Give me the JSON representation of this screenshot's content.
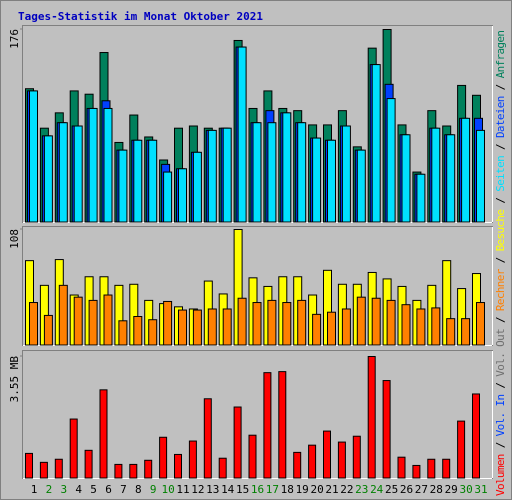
{
  "title": "Tages-Statistik im Monat Oktober 2021",
  "chart_data": [
    {
      "type": "bar",
      "ylim": [
        0,
        176
      ],
      "yticks": [
        176
      ],
      "series": [
        {
          "name": "Anfragen",
          "color": "#00805c",
          "values": [
            122,
            86,
            100,
            120,
            117,
            155,
            73,
            98,
            78,
            57,
            86,
            88,
            86,
            86,
            166,
            104,
            120,
            104,
            102,
            89,
            89,
            102,
            69,
            159,
            176,
            89,
            46,
            102,
            88,
            125,
            116
          ]
        },
        {
          "name": "Dateien",
          "color": "#0040ff",
          "values": [
            120,
            79,
            91,
            88,
            104,
            111,
            66,
            75,
            75,
            53,
            49,
            64,
            84,
            86,
            160,
            91,
            102,
            100,
            91,
            77,
            75,
            88,
            66,
            144,
            126,
            80,
            44,
            86,
            80,
            95,
            95
          ]
        },
        {
          "name": "Seiten",
          "color": "#00e0ff",
          "values": [
            120,
            79,
            91,
            88,
            104,
            104,
            66,
            75,
            75,
            46,
            49,
            64,
            84,
            86,
            160,
            91,
            91,
            100,
            91,
            77,
            75,
            88,
            66,
            144,
            113,
            80,
            44,
            86,
            80,
            95,
            84
          ]
        }
      ]
    },
    {
      "type": "bar",
      "ylim": [
        0,
        108
      ],
      "yticks": [
        108
      ],
      "series": [
        {
          "name": "Besuche",
          "color": "#ffff00",
          "values": [
            79,
            56,
            80,
            47,
            64,
            64,
            56,
            57,
            42,
            39,
            36,
            34,
            60,
            48,
            108,
            63,
            55,
            64,
            64,
            47,
            70,
            57,
            57,
            68,
            62,
            55,
            42,
            56,
            79,
            53,
            67
          ]
        },
        {
          "name": "Rechner",
          "color": "#ff8000",
          "values": [
            40,
            28,
            56,
            45,
            42,
            47,
            23,
            27,
            24,
            41,
            33,
            33,
            34,
            34,
            44,
            40,
            42,
            40,
            42,
            29,
            31,
            34,
            45,
            44,
            42,
            38,
            34,
            35,
            25,
            25,
            40
          ]
        }
      ]
    },
    {
      "type": "bar",
      "ylim": [
        0,
        3.55
      ],
      "yticks": [
        {
          "value": 3.55,
          "label": "3.55 MB"
        }
      ],
      "categories": [
        "1",
        "2",
        "3",
        "4",
        "5",
        "6",
        "7",
        "8",
        "9",
        "10",
        "11",
        "12",
        "13",
        "14",
        "15",
        "16",
        "17",
        "18",
        "19",
        "20",
        "21",
        "22",
        "23",
        "24",
        "25",
        "26",
        "27",
        "28",
        "29",
        "30",
        "31"
      ],
      "category_colors": [
        "#000000",
        "#008000",
        "#008000",
        "#000000",
        "#000000",
        "#000000",
        "#000000",
        "#000000",
        "#008000",
        "#008000",
        "#000000",
        "#000000",
        "#000000",
        "#000000",
        "#000000",
        "#008000",
        "#008000",
        "#000000",
        "#000000",
        "#000000",
        "#000000",
        "#000000",
        "#008000",
        "#008000",
        "#000000",
        "#000000",
        "#000000",
        "#000000",
        "#000000",
        "#008000",
        "#008000"
      ],
      "series": [
        {
          "name": "Volumen",
          "color": "#ff0000",
          "values": [
            0.73,
            0.47,
            0.56,
            1.73,
            0.82,
            2.58,
            0.41,
            0.41,
            0.53,
            1.2,
            0.7,
            1.09,
            2.32,
            0.59,
            2.08,
            1.26,
            3.08,
            3.11,
            0.76,
            0.97,
            1.38,
            1.06,
            1.23,
            3.55,
            2.85,
            0.62,
            0.38,
            0.56,
            0.56,
            1.67,
            2.46
          ]
        }
      ],
      "legend_only": [
        {
          "name": "Vol. In",
          "color": "#0040ff"
        },
        {
          "name": "Vol. Out",
          "color": "#707070"
        }
      ]
    }
  ]
}
